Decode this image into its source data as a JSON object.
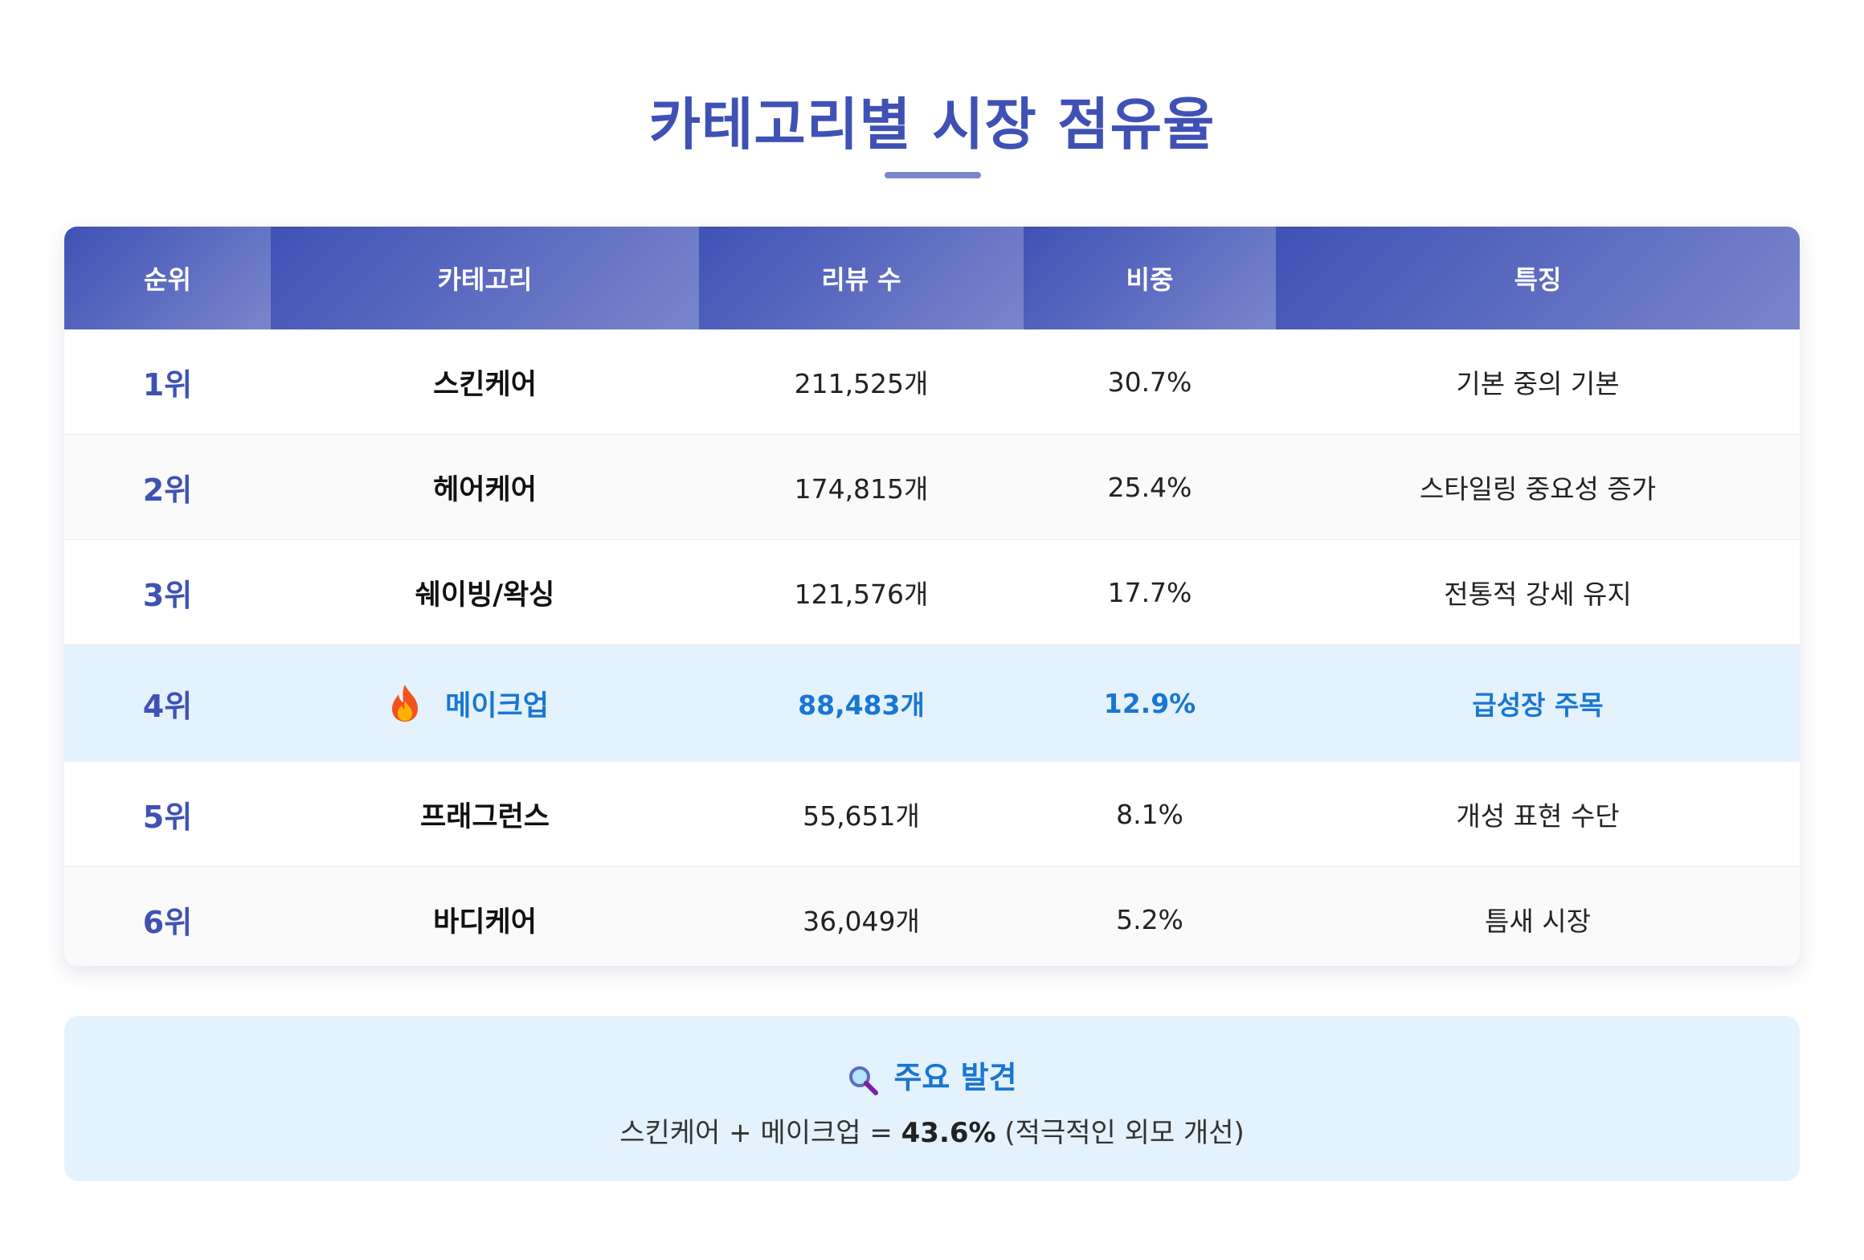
{
  "title": "카테고리별 시장 점유율",
  "table": {
    "headers": {
      "rank": "순위",
      "category": "카테고리",
      "reviews": "리뷰 수",
      "share": "비중",
      "feature": "특징"
    },
    "rows": [
      {
        "rank": "1위",
        "category": "스킨케어",
        "reviews": "211,525개",
        "share": "30.7%",
        "feature": "기본 중의 기본"
      },
      {
        "rank": "2위",
        "category": "헤어케어",
        "reviews": "174,815개",
        "share": "25.4%",
        "feature": "스타일링 중요성 증가"
      },
      {
        "rank": "3위",
        "category": "쉐이빙/왁싱",
        "reviews": "121,576개",
        "share": "17.7%",
        "feature": "전통적 강세 유지"
      },
      {
        "rank": "4위",
        "category": "메이크업",
        "reviews": "88,483개",
        "share": "12.9%",
        "feature": "급성장 주목",
        "icon": "flame-icon"
      },
      {
        "rank": "5위",
        "category": "프래그런스",
        "reviews": "55,651개",
        "share": "8.1%",
        "feature": "개성 표현 수단"
      },
      {
        "rank": "6위",
        "category": "바디케어",
        "reviews": "36,049개",
        "share": "5.2%",
        "feature": "틈새 시장"
      }
    ]
  },
  "findings": {
    "icon": "magnifier-icon",
    "title": "주요 발견",
    "text_before": "스킨케어 + 메이크업 = ",
    "highlight": "43.6%",
    "text_after": " (적극적인 외모 개선)"
  },
  "colors": {
    "primary": "#3f51b5",
    "accent_blue": "#1976d2",
    "highlight_bg": "#e3f2fd"
  }
}
